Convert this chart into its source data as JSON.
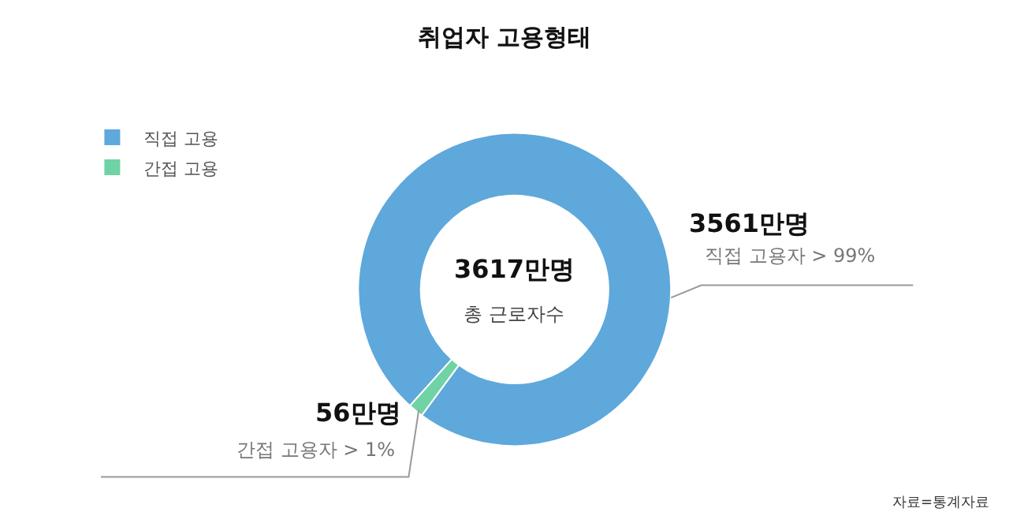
{
  "chart_data": {
    "type": "donut",
    "title": "취업자 고용형태",
    "categories": [
      "직접 고용",
      "간접 고용"
    ],
    "values": [
      3561,
      56
    ],
    "colors": [
      "#5ea8db",
      "#6fd3a5"
    ],
    "value_labels": [
      "3561만명",
      "56만명"
    ],
    "legend": "top left",
    "annotations": [
      "3617만명",
      "총 근로자수",
      "직접 고용자 > 99%",
      "간접 고용자 > 1%",
      "자료=통계자료"
    ]
  }
}
